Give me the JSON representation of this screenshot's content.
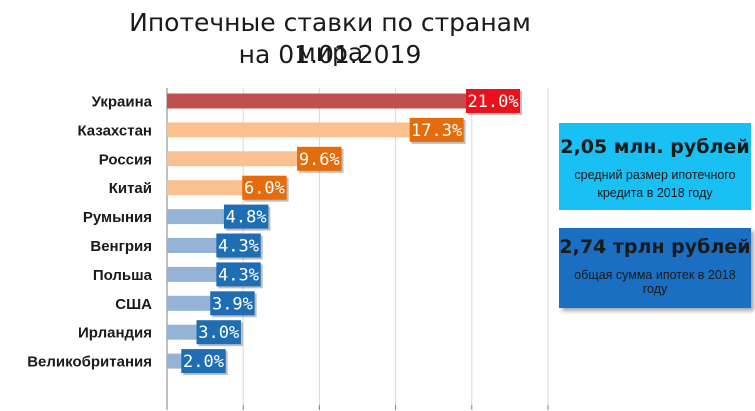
{
  "title_line1": "Ипотечные ставки по странам мира",
  "title_line2": "на 01.01.2019",
  "chart_data": {
    "type": "bar",
    "orientation": "horizontal",
    "categories": [
      "Украина",
      "Казахстан",
      "Россия",
      "Китай",
      "Румыния",
      "Венгрия",
      "Польша",
      "США",
      "Ирландия",
      "Великобритания"
    ],
    "values": [
      21.0,
      17.3,
      9.6,
      6.0,
      4.8,
      4.3,
      4.3,
      3.9,
      3.0,
      2.0
    ],
    "labels": [
      "21.0%",
      "17.3%",
      "9.6%",
      "6.0%",
      "4.8%",
      "4.3%",
      "4.3%",
      "3.9%",
      "3.0%",
      "2.0%"
    ],
    "xlim": [
      0,
      25
    ],
    "grid": true,
    "bar_colors": [
      "#c0504d",
      "#fac090",
      "#fac090",
      "#fac090",
      "#95b3d7",
      "#95b3d7",
      "#95b3d7",
      "#95b3d7",
      "#95b3d7",
      "#95b3d7"
    ],
    "label_colors": [
      "#e8121d",
      "#e46c0a",
      "#e46c0a",
      "#e46c0a",
      "#1f6eb4",
      "#1f6eb4",
      "#1f6eb4",
      "#1f6eb4",
      "#1f6eb4",
      "#1f6eb4"
    ]
  },
  "cards": [
    {
      "big": "2,05 млн. рублей",
      "small": "средний размер ипотечного кредита в 2018 году",
      "color": "#19c0f3"
    },
    {
      "big": "2,74 трлн рублей",
      "small": "общая сумма ипотек в 2018 году",
      "color": "#1a6fc2"
    }
  ]
}
